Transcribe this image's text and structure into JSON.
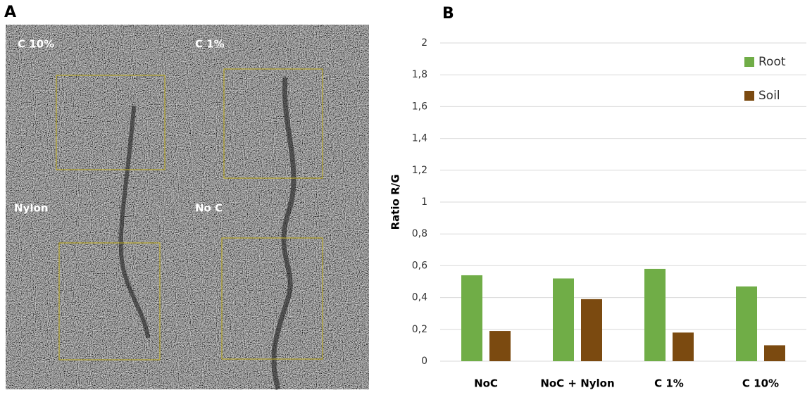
{
  "panels": {
    "a": "A",
    "b": "B"
  },
  "image": {
    "labels": [
      "C 10%",
      "C 1%",
      "Nylon",
      "No C"
    ]
  },
  "chart_data": {
    "type": "bar",
    "y_label": "Ratio R/G",
    "categories": [
      "NoC",
      "NoC + Nylon",
      "C 1%",
      "C 10%"
    ],
    "series": [
      {
        "name": "Root",
        "color": "#70ad47",
        "values": [
          0.54,
          0.52,
          0.58,
          0.47
        ]
      },
      {
        "name": "Soil",
        "color": "#7b4a10",
        "values": [
          0.19,
          0.39,
          0.18,
          0.1
        ]
      }
    ],
    "ylim": [
      0,
      2
    ],
    "yticks": [
      0,
      {
        "value": 0.2,
        "label": "0,2"
      },
      {
        "value": 0.4,
        "label": "0,4"
      },
      {
        "value": 0.6,
        "label": "0,6"
      },
      {
        "value": 0.8,
        "label": "0,8"
      },
      1,
      {
        "value": 1.2,
        "label": "1,2"
      },
      {
        "value": 1.4,
        "label": "1,4"
      },
      {
        "value": 1.6,
        "label": "1,6"
      },
      {
        "value": 1.8,
        "label": "1,8"
      },
      2
    ],
    "grid": true,
    "legend": "upper right"
  }
}
